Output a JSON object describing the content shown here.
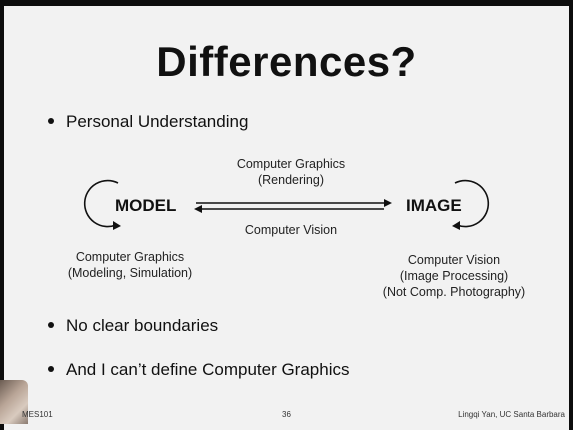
{
  "slide": {
    "title": "Differences?",
    "bullets": [
      "Personal Understanding",
      "No clear boundaries",
      "And I can’t define Computer Graphics"
    ],
    "diagram": {
      "left_node": "MODEL",
      "right_node": "IMAGE",
      "top_arrow_label": [
        "Computer Graphics",
        "(Rendering)"
      ],
      "bottom_arrow_label": "Computer Vision",
      "left_caption": [
        "Computer Graphics",
        "(Modeling, Simulation)"
      ],
      "right_caption": [
        "Computer Vision",
        "(Image Processing)",
        "(Not Comp. Photography)"
      ]
    },
    "footer": {
      "course": "MES101",
      "page_number": "36",
      "author": "Lingqi Yan, UC Santa Barbara"
    }
  }
}
